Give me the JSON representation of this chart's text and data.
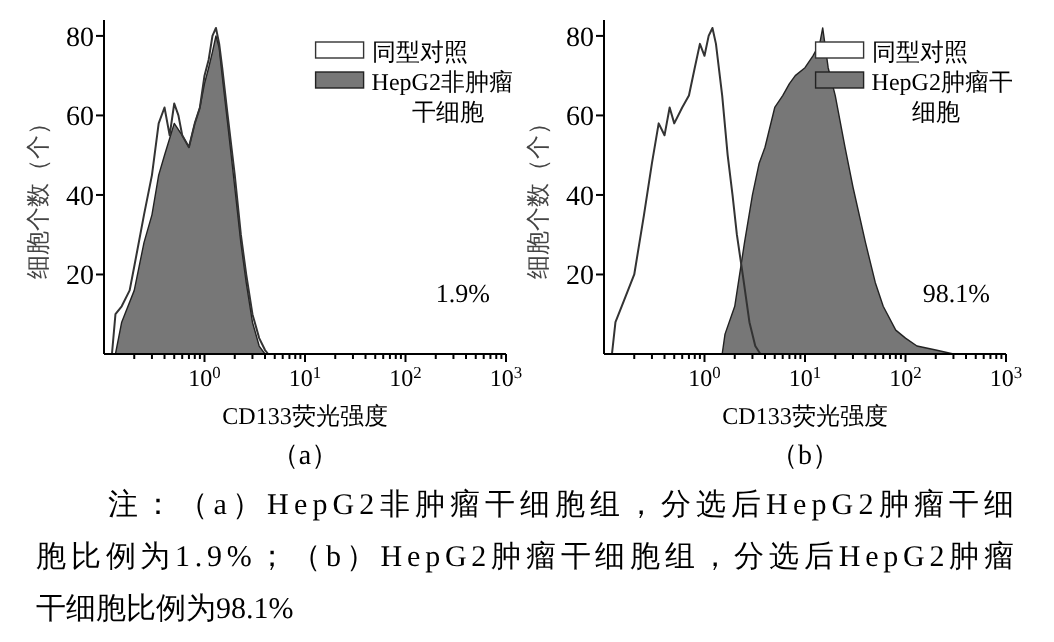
{
  "chart_data": [
    {
      "type": "area",
      "title": "（a）",
      "xlabel": "CD133荧光强度",
      "ylabel": "细胞个数（个）",
      "log": "x",
      "xlim": [
        0.1,
        1000
      ],
      "ylim": [
        0,
        84
      ],
      "xticks": [
        {
          "value": 0.2,
          "label": null
        },
        {
          "value": 0.3,
          "label": null
        },
        {
          "value": 0.4,
          "label": null
        },
        {
          "value": 0.5,
          "label": null
        },
        {
          "value": 0.6,
          "label": null
        },
        {
          "value": 0.7,
          "label": null
        },
        {
          "value": 0.8,
          "label": null
        },
        {
          "value": 0.9,
          "label": null
        },
        {
          "value": 1,
          "label": "10$^{0}$"
        },
        {
          "value": 2,
          "label": null
        },
        {
          "value": 3,
          "label": null
        },
        {
          "value": 4,
          "label": null
        },
        {
          "value": 5,
          "label": null
        },
        {
          "value": 6,
          "label": null
        },
        {
          "value": 7,
          "label": null
        },
        {
          "value": 8,
          "label": null
        },
        {
          "value": 9,
          "label": null
        },
        {
          "value": 10,
          "label": "10$^{1}$"
        },
        {
          "value": 20,
          "label": null
        },
        {
          "value": 30,
          "label": null
        },
        {
          "value": 40,
          "label": null
        },
        {
          "value": 50,
          "label": null
        },
        {
          "value": 60,
          "label": null
        },
        {
          "value": 70,
          "label": null
        },
        {
          "value": 80,
          "label": null
        },
        {
          "value": 90,
          "label": null
        },
        {
          "value": 100,
          "label": "10$^{2}$"
        },
        {
          "value": 200,
          "label": null
        },
        {
          "value": 300,
          "label": null
        },
        {
          "value": 400,
          "label": null
        },
        {
          "value": 500,
          "label": null
        },
        {
          "value": 600,
          "label": null
        },
        {
          "value": 700,
          "label": null
        },
        {
          "value": 800,
          "label": null
        },
        {
          "value": 900,
          "label": null
        },
        {
          "value": 1000,
          "label": "10$^{3}$"
        }
      ],
      "yticks": [
        20,
        40,
        60,
        80
      ],
      "legend": "top right",
      "grid": false,
      "series": [
        {
          "name": "同型对照",
          "type": "line",
          "color": "#333333",
          "x": [
            0.12,
            0.13,
            0.15,
            0.18,
            0.2,
            0.25,
            0.3,
            0.35,
            0.4,
            0.45,
            0.5,
            0.55,
            0.6,
            0.7,
            0.8,
            0.9,
            1.0,
            1.1,
            1.2,
            1.3,
            1.4,
            1.5,
            1.7,
            2.0,
            2.3,
            2.6,
            3.0,
            3.5,
            4.0,
            4.3
          ],
          "values": [
            0,
            10,
            12,
            16,
            22,
            35,
            45,
            58,
            62,
            55,
            63,
            60,
            55,
            52,
            58,
            62,
            70,
            74,
            80,
            82,
            78,
            72,
            60,
            45,
            30,
            20,
            10,
            4,
            1,
            0
          ]
        },
        {
          "name": "HepG2非肿瘤干细胞",
          "color": "#777777",
          "x": [
            0.13,
            0.15,
            0.2,
            0.25,
            0.3,
            0.35,
            0.4,
            0.5,
            0.6,
            0.7,
            0.8,
            0.9,
            1.0,
            1.1,
            1.2,
            1.3,
            1.4,
            1.5,
            1.7,
            2.0,
            2.3,
            2.6,
            3.0,
            3.5,
            4.0
          ],
          "values": [
            0,
            8,
            16,
            28,
            35,
            45,
            50,
            58,
            55,
            52,
            58,
            62,
            68,
            72,
            76,
            80,
            77,
            70,
            58,
            42,
            28,
            18,
            8,
            2,
            0
          ]
        }
      ],
      "annotations": [
        "1.9%"
      ]
    },
    {
      "type": "area",
      "title": "（b）",
      "xlabel": "CD133荧光强度",
      "ylabel": "细胞个数（个）",
      "log": "x",
      "xlim": [
        0.1,
        1000
      ],
      "ylim": [
        0,
        84
      ],
      "xticks": [
        {
          "value": 0.2,
          "label": null
        },
        {
          "value": 0.3,
          "label": null
        },
        {
          "value": 0.4,
          "label": null
        },
        {
          "value": 0.5,
          "label": null
        },
        {
          "value": 0.6,
          "label": null
        },
        {
          "value": 0.7,
          "label": null
        },
        {
          "value": 0.8,
          "label": null
        },
        {
          "value": 0.9,
          "label": null
        },
        {
          "value": 1,
          "label": "10$^{0}$"
        },
        {
          "value": 2,
          "label": null
        },
        {
          "value": 3,
          "label": null
        },
        {
          "value": 4,
          "label": null
        },
        {
          "value": 5,
          "label": null
        },
        {
          "value": 6,
          "label": null
        },
        {
          "value": 7,
          "label": null
        },
        {
          "value": 8,
          "label": null
        },
        {
          "value": 9,
          "label": null
        },
        {
          "value": 10,
          "label": "10$^{1}$"
        },
        {
          "value": 20,
          "label": null
        },
        {
          "value": 30,
          "label": null
        },
        {
          "value": 40,
          "label": null
        },
        {
          "value": 50,
          "label": null
        },
        {
          "value": 60,
          "label": null
        },
        {
          "value": 70,
          "label": null
        },
        {
          "value": 80,
          "label": null
        },
        {
          "value": 90,
          "label": null
        },
        {
          "value": 100,
          "label": "10$^{2}$"
        },
        {
          "value": 200,
          "label": null
        },
        {
          "value": 300,
          "label": null
        },
        {
          "value": 400,
          "label": null
        },
        {
          "value": 500,
          "label": null
        },
        {
          "value": 600,
          "label": null
        },
        {
          "value": 700,
          "label": null
        },
        {
          "value": 800,
          "label": null
        },
        {
          "value": 900,
          "label": null
        },
        {
          "value": 1000,
          "label": "10$^{3}$"
        }
      ],
      "yticks": [
        20,
        40,
        60,
        80
      ],
      "legend": "top right",
      "grid": false,
      "series": [
        {
          "name": "同型对照",
          "type": "line",
          "color": "#333333",
          "x": [
            0.12,
            0.13,
            0.15,
            0.2,
            0.25,
            0.3,
            0.35,
            0.4,
            0.45,
            0.5,
            0.6,
            0.7,
            0.8,
            0.9,
            1.0,
            1.1,
            1.2,
            1.3,
            1.5,
            1.7,
            1.9,
            2.1,
            2.4,
            2.8,
            3.2,
            3.6
          ],
          "values": [
            0,
            8,
            12,
            20,
            35,
            48,
            58,
            55,
            62,
            58,
            62,
            65,
            72,
            78,
            75,
            80,
            82,
            78,
            65,
            50,
            40,
            30,
            20,
            8,
            2,
            0
          ]
        },
        {
          "name": "HepG2肿瘤干细胞",
          "color": "#777777",
          "x": [
            1.5,
            1.6,
            2.0,
            2.5,
            3.0,
            3.5,
            4.0,
            5,
            6,
            7,
            8,
            10,
            12,
            14,
            15,
            17,
            20,
            25,
            30,
            40,
            50,
            60,
            80,
            100,
            130,
            200,
            300
          ],
          "values": [
            0,
            5,
            12,
            28,
            40,
            48,
            52,
            62,
            65,
            68,
            70,
            72,
            75,
            78,
            82,
            72,
            65,
            52,
            42,
            28,
            18,
            12,
            6,
            4,
            2,
            1,
            0
          ]
        }
      ],
      "annotations": [
        "98.1%",
        "注：（a）HepG2非肿瘤干细胞组，分选后HepG2肿瘤干细胞比例为1.9%；（b）HepG2肿瘤干细胞组，分选后HepG2肿瘤干细胞比例为98.1%"
      ]
    }
  ]
}
